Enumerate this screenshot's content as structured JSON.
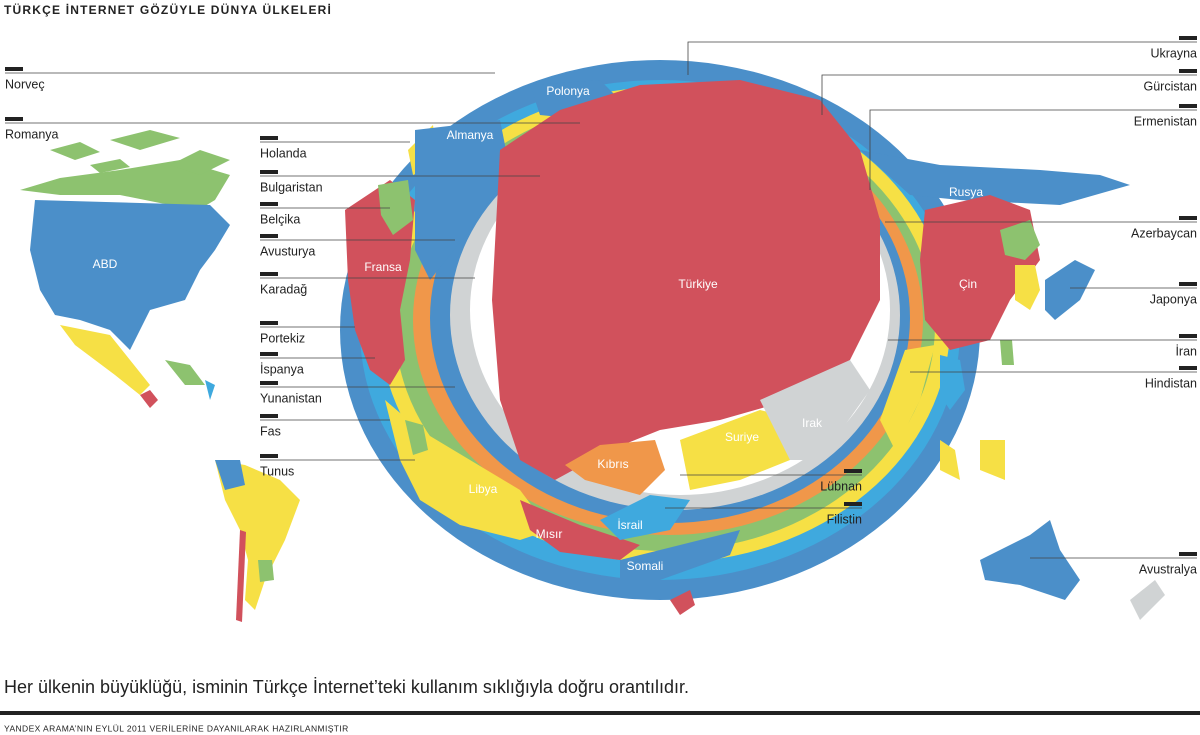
{
  "header": {
    "title": "TÜRKÇE İNTERNET GÖZÜYLE DÜNYA ÜLKELERİ"
  },
  "map": {
    "labels": [
      "ABD",
      "Fransa",
      "Almanya",
      "Polonya",
      "Rusya",
      "Çin",
      "Türkiye",
      "Kıbrıs",
      "Suriye",
      "Irak",
      "Libya",
      "Mısır",
      "İsrail",
      "Somali"
    ],
    "callouts": [
      "Norveç",
      "Romanya",
      "Holanda",
      "Bulgaristan",
      "Belçika",
      "Avusturya",
      "Karadağ",
      "Portekiz",
      "İspanya",
      "Yunanistan",
      "Fas",
      "Tunus",
      "Ukrayna",
      "Gürcistan",
      "Ermenistan",
      "Azerbaycan",
      "Japonya",
      "İran",
      "Hindistan",
      "Lübnan",
      "Filistin",
      "Avustralya"
    ]
  },
  "caption": "Her ülkenin büyüklüğü, isminin Türkçe İnternet’teki kullanım sıklığıyla doğru orantılıdır.",
  "footer": "YANDEX ARAMA’NIN EYLÜL 2011 VERİLERİNE DAYANILARAK HAZIRLANMIŞTIR"
}
